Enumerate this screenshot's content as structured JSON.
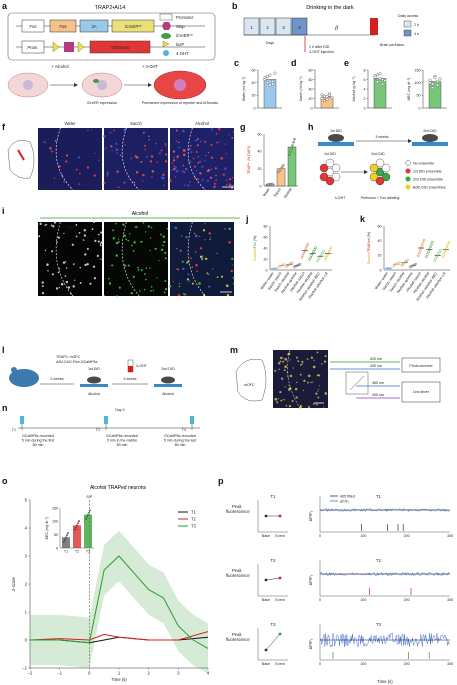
{
  "panels": {
    "a": {
      "letter": "a",
      "title": "TRAP2•Ai14",
      "construct1": [
        "Fos",
        "Fos",
        "2A",
        "iCreERᵀ²"
      ],
      "construct2": [
        "Prom.",
        "TdTomato"
      ],
      "legend": [
        "Promoter",
        "Stop",
        "iCreERᵀ²",
        "loxP",
        "4-OHT"
      ],
      "bottom_top": [
        "+ Alcohol",
        "+ 4-OHT"
      ],
      "bottom_captions": [
        "iCreER expression",
        "Permanent expression of reporter and tdTomato"
      ]
    },
    "b": {
      "letter": "b",
      "title": "Drinking in the dark",
      "days": [
        "1",
        "2",
        "3",
        "4"
      ],
      "days_label": "Days",
      "note1": "2 h after DID",
      "note2": "4-OHT injection",
      "note3": "Brain perfusion",
      "legend_title": "Daily access",
      "legend": [
        "2 h",
        "4 h"
      ]
    },
    "c": {
      "letter": "c",
      "ylabel": "Water (ml kg⁻¹)",
      "ticks": [
        "0",
        "20",
        "40",
        "60"
      ],
      "values": [
        48,
        40,
        52,
        38,
        55,
        45,
        50,
        36,
        42
      ],
      "ymax": 60
    },
    "d": {
      "letter": "d",
      "ylabel": "Sacch (ml kg⁻¹)",
      "ticks": [
        "0",
        "20",
        "40",
        "60",
        "80"
      ],
      "values": [
        20,
        25,
        18,
        30,
        22,
        28,
        15,
        24,
        27
      ],
      "ymax": 80
    },
    "e": {
      "letter": "e",
      "ylabel": "Alcohol (g kg⁻¹)",
      "ticks": [
        "0",
        "2",
        "4",
        "6",
        "8"
      ],
      "values": [
        6.8,
        5.5,
        7.2,
        6.0,
        5.8,
        6.5,
        7.0,
        6.2,
        5.0
      ],
      "ymax": 8
    },
    "e2": {
      "ylabel": "BEC (mg dl⁻¹)",
      "ticks": [
        "0",
        "50",
        "100",
        "150"
      ],
      "values": [
        110,
        95,
        125,
        90,
        115,
        100,
        80,
        120,
        105
      ],
      "ymax": 150
    },
    "f": {
      "letter": "f",
      "titles": [
        "Water",
        "Sacch",
        "Alcohol"
      ],
      "legend": [
        "TRAP",
        "DAPI"
      ],
      "scale": "100 µm"
    },
    "g": {
      "letter": "g",
      "ylabel": "TRAP+ (% DAPI)",
      "ticks": [
        "0",
        "20",
        "40",
        "60"
      ],
      "categories": [
        "Water",
        "Sacch",
        "Alcohol"
      ],
      "values": [
        2,
        20,
        45
      ],
      "ymax": 60
    },
    "h": {
      "letter": "h",
      "did1": "1st DID",
      "did2": "2nd DID",
      "weeks": "3 weeks",
      "did1b": "1st DID",
      "did2b": "2nd DID",
      "ohr": "4-OHT",
      "perf": "Perfusion + Fos labeling",
      "legend": [
        "No ensemble",
        "1st DID ensemble",
        "2nd DID ensemble",
        "Both DID ensembles"
      ]
    },
    "i": {
      "letter": "i",
      "title": "Alcohol",
      "titles": [
        "TRAP",
        "Fos",
        "Merged"
      ],
      "legend": [
        "TRAP",
        "Fos",
        "DAPI"
      ],
      "scale": "100 µm"
    },
    "j": {
      "letter": "j",
      "ylabel_a": "Double",
      "ylabel_b": "/Fos",
      "ylabel_c": " (%)",
      "ticks": [
        "0",
        "20",
        "40",
        "60",
        "80"
      ],
      "categories": [
        "Water–water",
        "Sacch–sacch",
        "Sacch–alcohol",
        "Alcohol–quinine",
        "Alcohol–sacch",
        "Alcohol–alcohol",
        "Alcohol–alcohol–BEC",
        "Alcohol–alcohol–LR"
      ],
      "values": [
        2,
        8,
        10,
        8,
        35,
        30,
        25,
        30
      ],
      "ymax": 80
    },
    "k": {
      "letter": "k",
      "ylabel_a": "Double",
      "ylabel_b": "/TRAPed",
      "ylabel_c": " (%)",
      "ticks": [
        "0",
        "20",
        "40",
        "60"
      ],
      "categories": [
        "Water–water",
        "Sacch–sacch",
        "Sacch–alcohol",
        "Alcohol–quinine",
        "Alcohol–sacch",
        "Alcohol–alcohol",
        "Alcohol–alcohol–BEC",
        "Alcohol–alcohol–LR"
      ],
      "values": [
        2,
        8,
        10,
        6,
        30,
        28,
        20,
        28
      ],
      "ymax": 60
    },
    "l": {
      "letter": "l",
      "line1": "TRAP2: mOFC",
      "line2": "AAV-CAG-Flex-GCaMP6s",
      "ohr": "4-OHT",
      "did1": "1st DID",
      "did2": "2nd DID",
      "weeks1": "3 weeks",
      "weeks2": "3 weeks",
      "alcohol": "Alcohol",
      "alcohol2": "Alcohol"
    },
    "m": {
      "letter": "m",
      "region": "mOFC",
      "scale": "100 µm",
      "wl": [
        "525 nm",
        "430 nm",
        "465 nm",
        "405 nm"
      ],
      "box1": "Photo-receiver",
      "box2": "Led driver",
      "label": "GCaMP6s"
    },
    "n": {
      "letter": "n",
      "day": "Day 4",
      "points": [
        "T1",
        "T2",
        "T3"
      ],
      "desc": [
        [
          "GCaMP6s recorded",
          "5 min during the first",
          "80 min"
        ],
        [
          "GCaMP6s recorded",
          "5 min in the middle",
          "80 min"
        ],
        [
          "GCaMP6s recorded",
          "5 min during the last",
          "80 min"
        ]
      ]
    },
    "o": {
      "letter": "o",
      "title": "Alcohol TRAPed neurons",
      "sip": "SIP",
      "ylabel": "z-score",
      "xlabel": "Time (s)",
      "xticks": [
        "−2",
        "−1",
        "0",
        "1",
        "2",
        "3",
        "4"
      ],
      "yticks": [
        "−1",
        "0",
        "1",
        "2",
        "3",
        "4",
        "5"
      ],
      "legend": [
        "T1",
        "T2",
        "T3"
      ],
      "colors": [
        "#111111",
        "#d62020",
        "#2e9b2e"
      ],
      "inset": {
        "ylabel": "BEC (mg dl⁻¹)",
        "ticks": [
          "0",
          "50",
          "100",
          "150"
        ],
        "categories": [
          "T1",
          "T2",
          "T3"
        ],
        "values": [
          40,
          85,
          125
        ]
      }
    },
    "p": {
      "letter": "p",
      "ylabel": "Peak fluorescence",
      "cats": [
        "Base",
        "Event"
      ],
      "trace_ylabel": "ΔF/F₀",
      "legend": [
        "405 fitted",
        "ΔF/F₀"
      ],
      "rows": [
        "T1",
        "T2",
        "T3"
      ],
      "xticks": [
        "0",
        "100",
        "200",
        "300"
      ],
      "xlabel": "Time (s)"
    }
  },
  "chart_data": [
    {
      "type": "bar",
      "title": "",
      "ylabel": "Water (ml kg⁻¹)",
      "categories": [
        "Water"
      ],
      "values": [
        46
      ],
      "ylim": [
        0,
        60
      ]
    },
    {
      "type": "bar",
      "title": "",
      "ylabel": "Sacch (ml kg⁻¹)",
      "categories": [
        "Sacch"
      ],
      "values": [
        23
      ],
      "ylim": [
        0,
        80
      ]
    },
    {
      "type": "bar",
      "title": "",
      "ylabel": "Alcohol (g kg⁻¹)",
      "categories": [
        "Alcohol"
      ],
      "values": [
        6.2
      ],
      "ylim": [
        0,
        8
      ]
    },
    {
      "type": "bar",
      "title": "",
      "ylabel": "BEC (mg dl⁻¹)",
      "categories": [
        "BEC"
      ],
      "values": [
        104
      ],
      "ylim": [
        0,
        150
      ]
    },
    {
      "type": "bar",
      "title": "",
      "ylabel": "TRAP+ (% DAPI)",
      "categories": [
        "Water",
        "Sacch",
        "Alcohol"
      ],
      "values": [
        2,
        20,
        45
      ],
      "ylim": [
        0,
        60
      ]
    },
    {
      "type": "line",
      "title": "Alcohol TRAPed neurons",
      "xlabel": "Time (s)",
      "ylabel": "z-score",
      "xlim": [
        -2,
        4
      ],
      "ylim": [
        -1,
        5
      ],
      "series": [
        {
          "name": "T1",
          "x": [
            -2,
            -1,
            0,
            0.5,
            1,
            2,
            3,
            4
          ],
          "values": [
            0,
            0,
            -0.1,
            0,
            0.1,
            0,
            0,
            0.1
          ]
        },
        {
          "name": "T2",
          "x": [
            -2,
            -1,
            0,
            0.5,
            1,
            2,
            3,
            4
          ],
          "values": [
            0,
            0.05,
            0,
            0.2,
            0.1,
            0,
            0,
            0.3
          ]
        },
        {
          "name": "T3",
          "x": [
            -2,
            -1,
            0,
            0.5,
            1,
            1.5,
            2,
            2.5,
            3,
            3.5,
            4
          ],
          "values": [
            0,
            0,
            -0.1,
            2.5,
            3,
            2.4,
            1.8,
            1.5,
            0.5,
            0,
            -0.3
          ]
        }
      ]
    }
  ]
}
